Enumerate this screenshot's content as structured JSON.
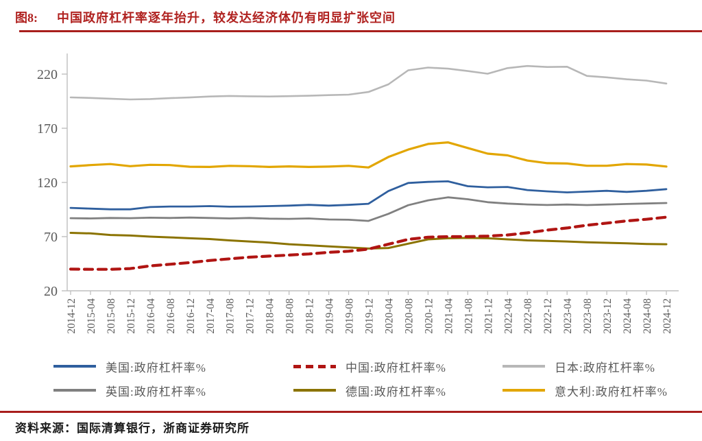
{
  "figure": {
    "label": "图8:",
    "title": "中国政府杠杆率逐年抬升，较发达经济体仍有明显扩张空间"
  },
  "source": {
    "label": "资料来源：",
    "text": "国际清算银行，浙商证券研究所"
  },
  "theme": {
    "accent_red": "#B02220",
    "axis_color": "#BFBFBF",
    "tick_text_color": "#595959"
  },
  "chart_data": {
    "type": "line",
    "title": "",
    "xlabel": "",
    "ylabel": "",
    "grid": false,
    "legend_position": "bottom",
    "ylim": [
      20,
      239
    ],
    "yticks": [
      20,
      70,
      120,
      170,
      220
    ],
    "categories": [
      "2014-12",
      "2015-04",
      "2015-08",
      "2015-12",
      "2016-04",
      "2016-08",
      "2016-12",
      "2017-04",
      "2017-08",
      "2017-12",
      "2018-04",
      "2018-08",
      "2018-12",
      "2019-04",
      "2019-08",
      "2019-12",
      "2020-04",
      "2020-08",
      "2020-12",
      "2021-04",
      "2021-08",
      "2021-12",
      "2022-04",
      "2022-08",
      "2022-12",
      "2023-04",
      "2023-08",
      "2023-12",
      "2024-04",
      "2024-08",
      "2024-12"
    ],
    "series": [
      {
        "name": "美国:政府杠杆率%",
        "color": "#2F5F9E",
        "dash": null,
        "width": 2.8,
        "values": [
          96.5,
          95.8,
          95.2,
          95.2,
          97.3,
          97.8,
          97.8,
          98.2,
          97.6,
          97.8,
          98.2,
          98.6,
          99.3,
          98.6,
          99.3,
          100.3,
          112.0,
          119.5,
          120.5,
          121.0,
          116.5,
          115.5,
          115.8,
          113.0,
          111.8,
          110.8,
          111.5,
          112.3,
          111.3,
          112.3,
          113.8
        ]
      },
      {
        "name": "中国:政府杠杆率%",
        "color": "#B01513",
        "dash": "12 8",
        "width": 4.2,
        "values": [
          40.0,
          39.8,
          39.8,
          40.5,
          43.0,
          44.5,
          46.0,
          48.0,
          49.5,
          51.0,
          52.0,
          53.0,
          54.0,
          55.5,
          56.5,
          58.5,
          63.0,
          67.5,
          69.5,
          70.0,
          70.0,
          70.5,
          71.5,
          73.5,
          76.0,
          78.0,
          80.5,
          82.5,
          84.5,
          86.0,
          88.0
        ]
      },
      {
        "name": "日本:政府杠杆率%",
        "color": "#B7B7B7",
        "dash": null,
        "width": 2.6,
        "values": [
          198.5,
          198.0,
          197.3,
          196.6,
          197.0,
          197.8,
          198.4,
          199.3,
          199.8,
          199.5,
          199.3,
          199.6,
          200.0,
          200.6,
          201.0,
          203.5,
          210.5,
          223.5,
          226.0,
          225.0,
          222.8,
          220.3,
          225.5,
          227.5,
          226.5,
          226.8,
          218.3,
          217.0,
          215.2,
          214.0,
          211.3
        ]
      },
      {
        "name": "英国:政府杠杆率%",
        "color": "#808080",
        "dash": null,
        "width": 2.8,
        "values": [
          87.0,
          86.8,
          87.2,
          87.0,
          87.5,
          87.2,
          87.6,
          87.2,
          86.8,
          87.2,
          86.6,
          86.4,
          86.8,
          85.8,
          85.6,
          84.5,
          91.0,
          99.0,
          103.5,
          106.3,
          104.5,
          101.8,
          100.5,
          99.7,
          99.2,
          99.6,
          99.1,
          99.6,
          100.1,
          100.6,
          101.0
        ]
      },
      {
        "name": "德国:政府杠杆率%",
        "color": "#8B7300",
        "dash": null,
        "width": 3.0,
        "values": [
          73.5,
          73.0,
          71.5,
          71.0,
          70.0,
          69.3,
          68.5,
          67.8,
          66.5,
          65.5,
          64.5,
          63.0,
          62.0,
          61.0,
          60.0,
          59.0,
          59.5,
          63.5,
          67.5,
          68.5,
          68.8,
          68.5,
          67.5,
          66.5,
          66.0,
          65.5,
          64.8,
          64.3,
          63.8,
          63.2,
          63.0
        ]
      },
      {
        "name": "意大利:政府杠杆率%",
        "color": "#E2A602",
        "dash": null,
        "width": 3.2,
        "values": [
          134.8,
          136.0,
          137.0,
          135.0,
          136.3,
          136.0,
          134.5,
          134.3,
          135.3,
          135.0,
          134.3,
          134.8,
          134.3,
          134.6,
          135.3,
          133.8,
          143.5,
          150.3,
          155.5,
          157.0,
          151.8,
          146.6,
          145.0,
          140.2,
          137.8,
          137.5,
          135.4,
          135.4,
          137.0,
          136.5,
          134.7
        ]
      }
    ]
  }
}
